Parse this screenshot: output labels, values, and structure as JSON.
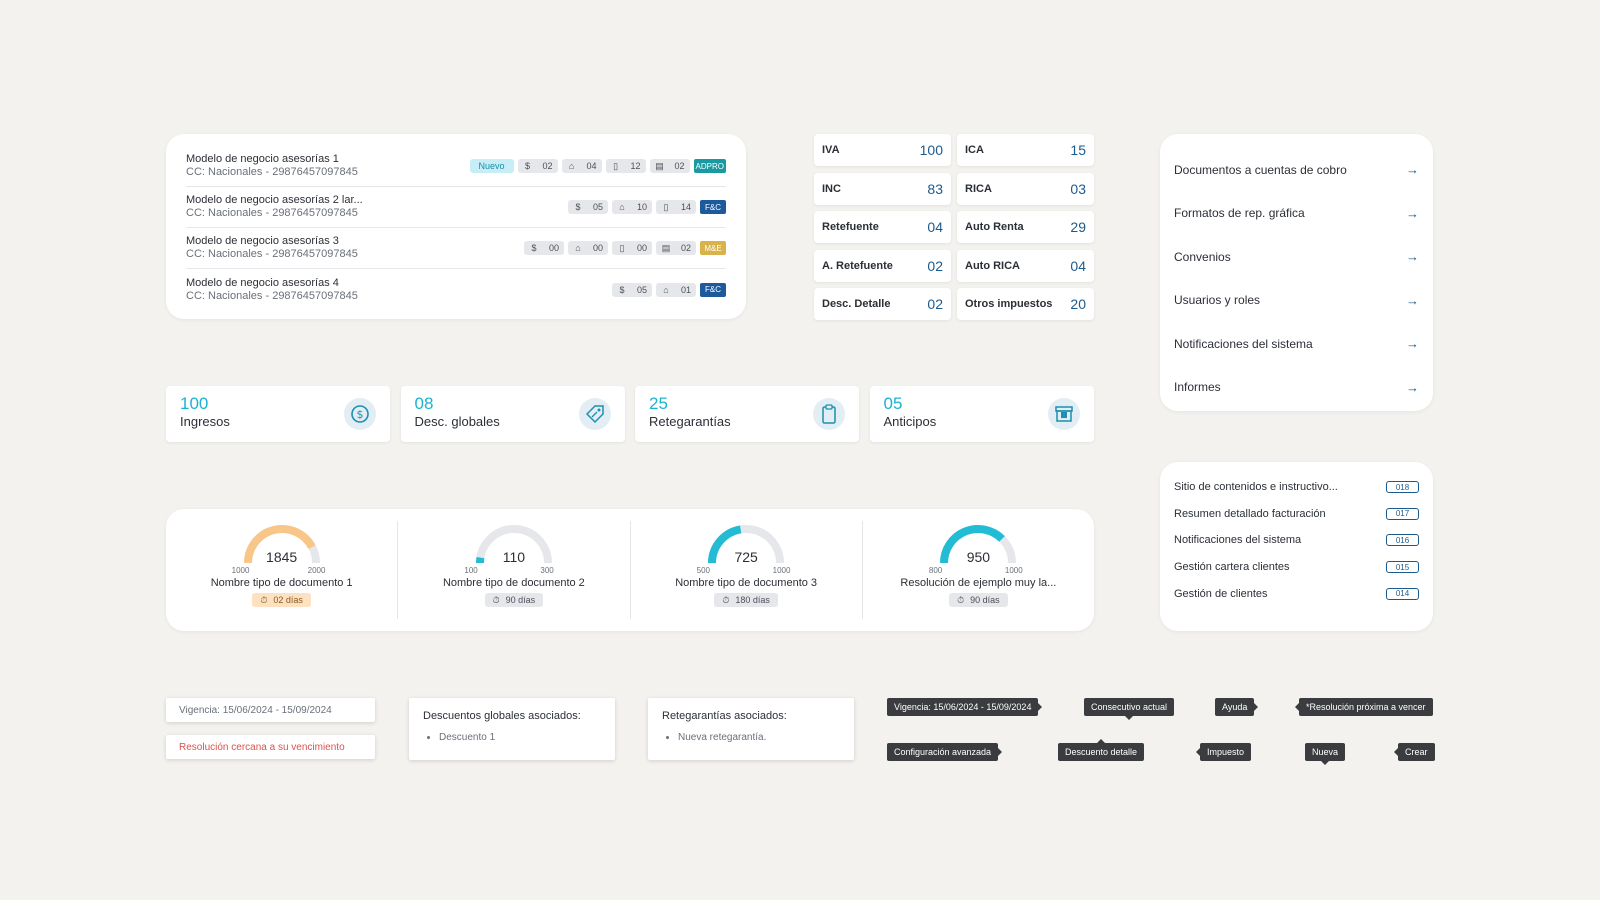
{
  "models": [
    {
      "name": "Modelo de negocio asesorías 1",
      "sub": "CC: Nacionales - 29876457097845",
      "nuevo": "Nuevo",
      "chips": [
        {
          "icon": "dollar-icon",
          "glyph": "$",
          "value": "02"
        },
        {
          "icon": "tag-icon",
          "glyph": "⌂",
          "value": "04"
        },
        {
          "icon": "clipboard-icon",
          "glyph": "▯",
          "value": "12"
        },
        {
          "icon": "archive-icon",
          "glyph": "▤",
          "value": "02"
        }
      ],
      "tag": {
        "label": "ADPRO",
        "color": "#1a9aa0"
      }
    },
    {
      "name": "Modelo de negocio asesorías 2 lar...",
      "sub": "CC: Nacionales - 29876457097845",
      "nuevo": "",
      "chips": [
        {
          "icon": "dollar-icon",
          "glyph": "$",
          "value": "05"
        },
        {
          "icon": "tag-icon",
          "glyph": "⌂",
          "value": "10"
        },
        {
          "icon": "clipboard-icon",
          "glyph": "▯",
          "value": "14"
        }
      ],
      "tag": {
        "label": "F&C",
        "color": "#1d5a9c"
      }
    },
    {
      "name": "Modelo de negocio asesorías 3",
      "sub": "CC: Nacionales - 29876457097845",
      "nuevo": "",
      "chips": [
        {
          "icon": "dollar-icon",
          "glyph": "$",
          "value": "00"
        },
        {
          "icon": "tag-icon",
          "glyph": "⌂",
          "value": "00"
        },
        {
          "icon": "clipboard-icon",
          "glyph": "▯",
          "value": "00"
        },
        {
          "icon": "archive-icon",
          "glyph": "▤",
          "value": "02"
        }
      ],
      "tag": {
        "label": "M&E",
        "color": "#d9b24a"
      }
    },
    {
      "name": "Modelo de negocio asesorías 4",
      "sub": "CC: Nacionales - 29876457097845",
      "nuevo": "",
      "chips": [
        {
          "icon": "dollar-icon",
          "glyph": "$",
          "value": "05"
        },
        {
          "icon": "tag-icon",
          "glyph": "⌂",
          "value": "01"
        }
      ],
      "tag": {
        "label": "F&C",
        "color": "#1d5a9c"
      }
    }
  ],
  "taxes": [
    {
      "name": "IVA",
      "value": "100"
    },
    {
      "name": "ICA",
      "value": "15"
    },
    {
      "name": "INC",
      "value": "83"
    },
    {
      "name": "RICA",
      "value": "03"
    },
    {
      "name": "Retefuente",
      "value": "04"
    },
    {
      "name": "Auto Renta",
      "value": "29"
    },
    {
      "name": "A. Retefuente",
      "value": "02"
    },
    {
      "name": "Auto RICA",
      "value": "04"
    },
    {
      "name": "Desc. Detalle",
      "value": "02"
    },
    {
      "name": "Otros impuestos",
      "value": "20"
    }
  ],
  "menu": [
    "Documentos a cuentas de cobro",
    "Formatos de rep. gráfica",
    "Convenios",
    "Usuarios y roles",
    "Notificaciones del sistema",
    "Informes"
  ],
  "kpis": [
    {
      "value": "100",
      "label": "Ingresos",
      "icon": "dollar-circle-icon"
    },
    {
      "value": "08",
      "label": "Desc. globales",
      "icon": "discount-tag-icon"
    },
    {
      "value": "25",
      "label": "Retegarantías",
      "icon": "clipboard-icon"
    },
    {
      "value": "05",
      "label": "Anticipos",
      "icon": "archive-box-icon"
    }
  ],
  "gauges": [
    {
      "value": "1845",
      "min": "1000",
      "max": "2000",
      "fraction": 0.845,
      "color": "#f9c68a",
      "name": "Nombre tipo de documento 1",
      "days": "02 días",
      "warn": true
    },
    {
      "value": "110",
      "min": "100",
      "max": "300",
      "fraction": 0.05,
      "color": "#22bcd4",
      "name": "Nombre tipo de documento 2",
      "days": "90 días",
      "warn": false
    },
    {
      "value": "725",
      "min": "500",
      "max": "1000",
      "fraction": 0.45,
      "color": "#22bcd4",
      "name": "Nombre tipo de documento 3",
      "days": "180 días",
      "warn": false
    },
    {
      "value": "950",
      "min": "800",
      "max": "1000",
      "fraction": 0.75,
      "color": "#22bcd4",
      "name": "Resolución de ejemplo muy la...",
      "days": "90 días",
      "warn": false
    }
  ],
  "codes": [
    {
      "label": "Sitio de contenidos e instructivo...",
      "code": "018"
    },
    {
      "label": "Resumen detallado facturación",
      "code": "017"
    },
    {
      "label": "Notificaciones del sistema",
      "code": "016"
    },
    {
      "label": "Gestión cartera clientes",
      "code": "015"
    },
    {
      "label": "Gestión de clientes",
      "code": "014"
    }
  ],
  "vigencia": "Vigencia: 15/06/2024 - 15/09/2024",
  "resolucion_warning": "Resolución cercana a su vencimiento",
  "warn_color": "#d9534f",
  "descuentos": {
    "title": "Descuentos globales asociados:",
    "items": [
      "Descuento 1"
    ]
  },
  "retegarantias": {
    "title": "Retegarantías asociados:",
    "items": [
      "Nueva retegarantía."
    ]
  },
  "tooltips": {
    "vigencia": "Vigencia: 15/06/2024 - 15/09/2024",
    "consecutivo": "Consecutivo actual",
    "ayuda": "Ayuda",
    "resolucion": "*Resolución próxima a vencer",
    "configuracion": "Configuración avanzada",
    "descuento": "Descuento detalle",
    "impuesto": "Impuesto",
    "nueva": "Nueva",
    "crear": "Crear"
  }
}
